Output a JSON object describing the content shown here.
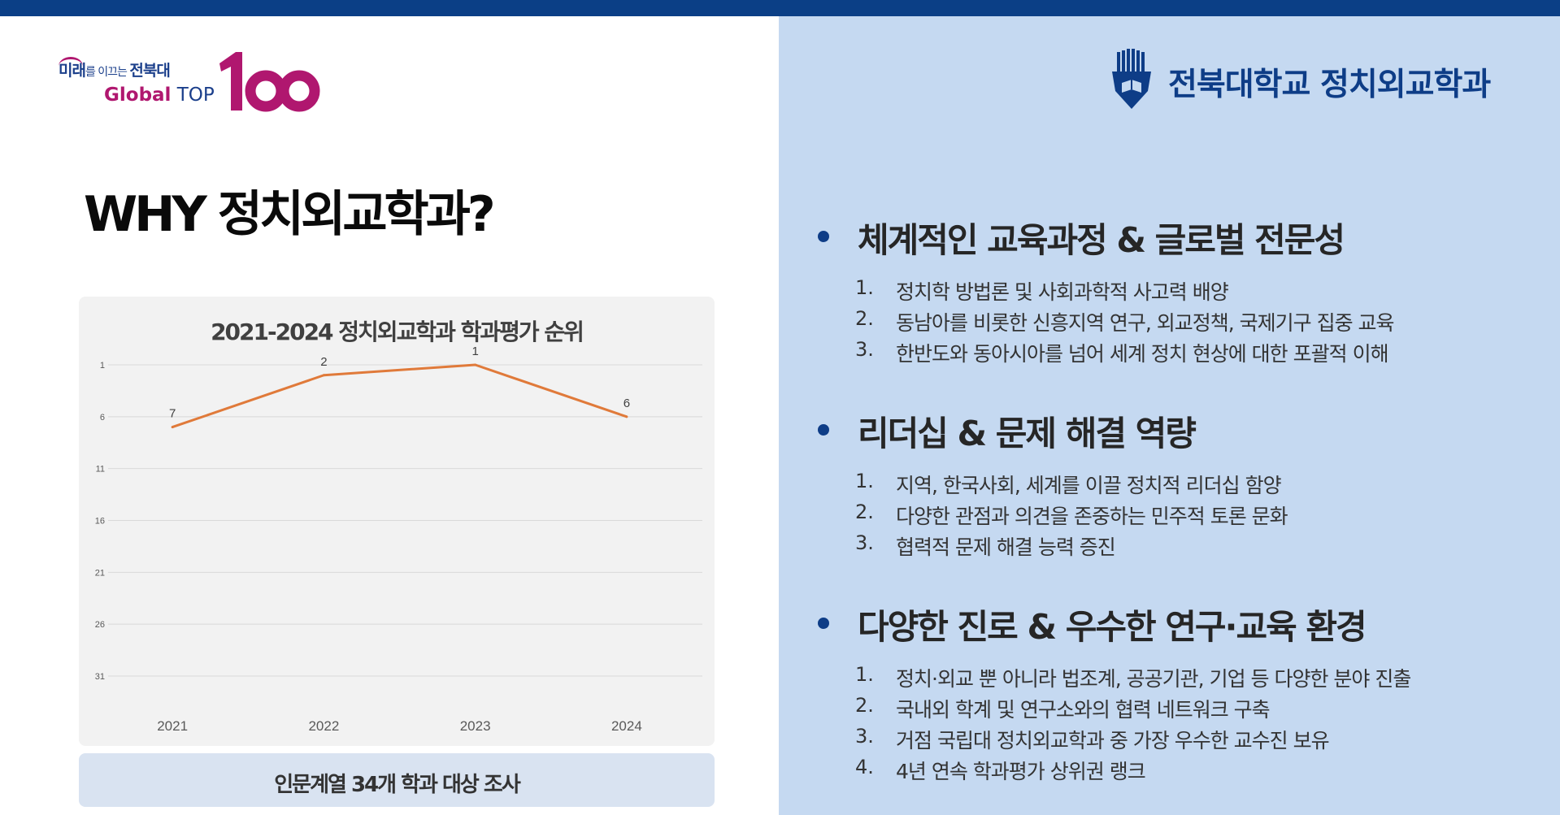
{
  "logo": {
    "line1_a": "미래",
    "line1_b": "를 이끄는 ",
    "line1_c": "전북대",
    "line2_a": "Global",
    "line2_b": " TOP",
    "big_number": "100"
  },
  "header": {
    "university_name": "전북대학교 정치외교학과"
  },
  "page_title": "WHY 정치외교학과?",
  "chart_note": "인문계열 34개 학과 대상 조사",
  "colors": {
    "top_bar": "#0b3f86",
    "right_panel": "#c5d9f1",
    "line": "#e07a3a",
    "brand_magenta": "#b0176f",
    "brand_navy": "#0e3d87"
  },
  "chart_data": {
    "type": "line",
    "title": "2021-2024 정치외교학과 학과평가 순위",
    "categories": [
      "2021",
      "2022",
      "2023",
      "2024"
    ],
    "series": [
      {
        "values": [
          7,
          2,
          1,
          6
        ]
      }
    ],
    "y_ticks": [
      "1",
      "6",
      "11",
      "16",
      "21",
      "26",
      "31"
    ],
    "ylim": [
      1,
      31
    ],
    "y_reversed": true,
    "grid": true,
    "data_labels": true
  },
  "sections": [
    {
      "title": "체계적인 교육과정 & 글로벌 전문성",
      "items": [
        {
          "num": "1.",
          "text": "정치학 방법론 및 사회과학적 사고력 배양"
        },
        {
          "num": "2.",
          "text": "동남아를 비롯한 신흥지역 연구, 외교정책, 국제기구 집중 교육"
        },
        {
          "num": "3.",
          "text": "한반도와 동아시아를 넘어 세계 정치 현상에 대한 포괄적 이해"
        }
      ]
    },
    {
      "title": "리더십 & 문제 해결 역량",
      "items": [
        {
          "num": "1.",
          "text": "지역, 한국사회, 세계를 이끌 정치적 리더십 함양"
        },
        {
          "num": "2.",
          "text": "다양한 관점과 의견을 존중하는 민주적 토론 문화"
        },
        {
          "num": "3.",
          "text": "협력적 문제 해결 능력 증진"
        }
      ]
    },
    {
      "title": "다양한 진로 & 우수한 연구·교육 환경",
      "items": [
        {
          "num": "1.",
          "text": "정치·외교 뿐 아니라 법조계, 공공기관, 기업 등 다양한 분야 진출"
        },
        {
          "num": "2.",
          "text": "국내외 학계 및 연구소와의 협력 네트워크 구축"
        },
        {
          "num": "3.",
          "text": "거점 국립대 정치외교학과 중 가장 우수한 교수진 보유"
        },
        {
          "num": "4.",
          "text": "4년 연속 학과평가 상위권 랭크"
        }
      ]
    }
  ]
}
